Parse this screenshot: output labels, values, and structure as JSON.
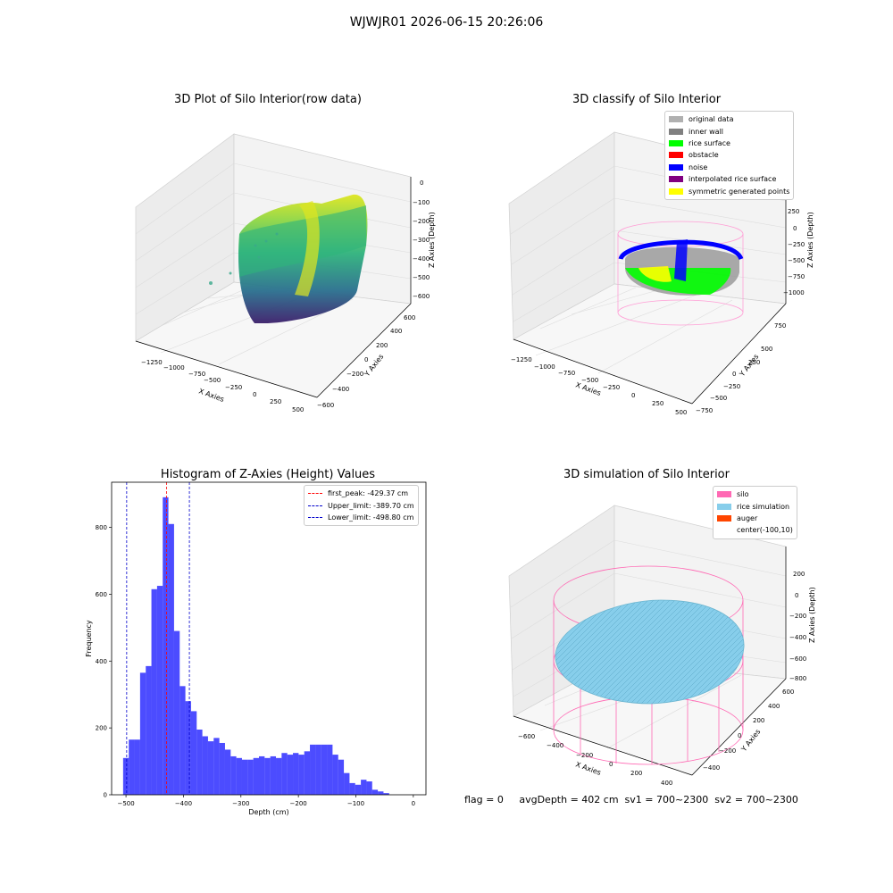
{
  "suptitle": "WJWJR01 2026-06-15 20:26:06",
  "footer": "flag = 0     avgDepth = 402 cm  sv1 = 700~2300  sv2 = 700~2300",
  "panel1": {
    "title": "3D Plot of Silo Interior(row data)",
    "xlabel": "X Axies",
    "ylabel": "Y Axies",
    "zlabel": "Z Axies (Depth)",
    "xticks": [
      "−1250",
      "−1000",
      "−750",
      "−500",
      "−250",
      "0",
      "250",
      "500"
    ],
    "yticks": [
      "600",
      "400",
      "200",
      "0",
      "−200",
      "−400",
      "−600"
    ],
    "zticks": [
      "0",
      "−100",
      "−200",
      "−300",
      "−400",
      "−500",
      "−600"
    ]
  },
  "panel2": {
    "title": "3D classify of Silo Interior",
    "xlabel": "X Axies",
    "ylabel": "Y Axies",
    "zlabel": "Z Axies (Depth)",
    "xticks": [
      "−1250",
      "−1000",
      "−750",
      "−500",
      "−250",
      "0",
      "250",
      "500"
    ],
    "yticks": [
      "750",
      "500",
      "250",
      "0",
      "−250",
      "−500",
      "−750"
    ],
    "zticks": [
      "250",
      "0",
      "−250",
      "−500",
      "−750",
      "−1000"
    ],
    "legend": [
      {
        "label": "original data",
        "color": "#b0b0b0"
      },
      {
        "label": "inner wall",
        "color": "#808080"
      },
      {
        "label": "rice surface",
        "color": "#00ff00"
      },
      {
        "label": "obstacle",
        "color": "#ff0000"
      },
      {
        "label": "noise",
        "color": "#0000ff"
      },
      {
        "label": "interpolated rice surface",
        "color": "#800080"
      },
      {
        "label": "symmetric generated points",
        "color": "#ffff00"
      }
    ]
  },
  "panel3": {
    "title": "Histogram of Z-Axies (Height) Values",
    "xlabel": "Depth (cm)",
    "ylabel": "Frequency",
    "legend": [
      {
        "label": "first_peak: -429.37 cm",
        "color": "#ff0000"
      },
      {
        "label": "Upper_limit: -389.70 cm",
        "color": "#0000cc"
      },
      {
        "label": "Lower_limit: -498.80 cm",
        "color": "#0000cc"
      }
    ]
  },
  "panel4": {
    "title": "3D simulation of Silo Interior",
    "xlabel": "X Axies",
    "ylabel": "Y Axies",
    "zlabel": "Z Axies (Depth)",
    "xticks": [
      "−600",
      "−400",
      "−200",
      "0",
      "200",
      "400"
    ],
    "yticks": [
      "600",
      "400",
      "200",
      "0",
      "−200",
      "−400"
    ],
    "zticks": [
      "200",
      "0",
      "−200",
      "−400",
      "−600",
      "−800"
    ],
    "legend": [
      {
        "label": "silo",
        "color": "#ff69b4"
      },
      {
        "label": "rice simulation",
        "color": "#87ceeb"
      },
      {
        "label": "auger",
        "color": "#ff4500"
      },
      {
        "label": "center(-100,10)",
        "color": "#ffffff"
      }
    ]
  },
  "chart_data": {
    "type": "bar",
    "title": "Histogram of Z-Axies (Height) Values",
    "xlabel": "Depth (cm)",
    "ylabel": "Frequency",
    "xlim": [
      -525,
      22
    ],
    "ylim": [
      0,
      935
    ],
    "xticks": [
      -500,
      -400,
      -300,
      -200,
      -100,
      0
    ],
    "yticks": [
      0,
      200,
      400,
      600,
      800
    ],
    "bin_start": -505,
    "bin_width": 9.85,
    "values": [
      110,
      165,
      165,
      365,
      385,
      615,
      625,
      890,
      810,
      490,
      325,
      280,
      250,
      195,
      175,
      160,
      170,
      155,
      135,
      115,
      110,
      105,
      105,
      110,
      115,
      110,
      115,
      110,
      125,
      120,
      125,
      120,
      130,
      150,
      150,
      150,
      150,
      120,
      105,
      65,
      35,
      30,
      45,
      40,
      15,
      10,
      5
    ],
    "bar_color": "#0000ff",
    "vlines": [
      {
        "name": "first_peak: -429.37 cm",
        "x": -429.37,
        "color": "#ff0000"
      },
      {
        "name": "Upper_limit: -389.70 cm",
        "x": -389.7,
        "color": "#0000cc"
      },
      {
        "name": "Lower_limit: -498.80 cm",
        "x": -498.8,
        "color": "#0000cc"
      }
    ],
    "legend_position": "top-right"
  }
}
